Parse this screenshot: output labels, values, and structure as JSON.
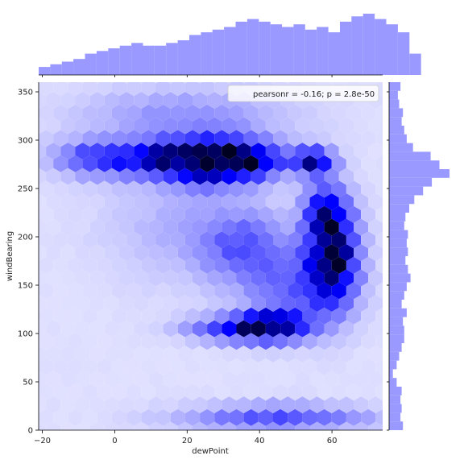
{
  "chart_data": {
    "type": "hexbin-joint",
    "xlabel": "dewPoint",
    "ylabel": "windBearing",
    "xlim": [
      -21,
      74
    ],
    "ylim": [
      0,
      360
    ],
    "xticks": [
      -20,
      0,
      20,
      40,
      60
    ],
    "yticks": [
      0,
      50,
      100,
      150,
      200,
      250,
      300,
      350
    ],
    "color": "#0000ff",
    "marginal_color": "#9999ff",
    "annotation": "pearsonr = -0.16; p = 2.8e-50",
    "legend_placement": "top-right",
    "grid": false,
    "hex_clusters": [
      {
        "x": 28,
        "y": 278,
        "sx": 9,
        "sy": 16,
        "w": 1.0
      },
      {
        "x": 18,
        "y": 282,
        "sx": 7,
        "sy": 10,
        "w": 0.55
      },
      {
        "x": 55,
        "y": 278,
        "sx": 4,
        "sy": 10,
        "w": 0.8
      },
      {
        "x": 8,
        "y": 280,
        "sx": 14,
        "sy": 14,
        "w": 0.45
      },
      {
        "x": -5,
        "y": 283,
        "sx": 8,
        "sy": 12,
        "w": 0.3
      },
      {
        "x": 40,
        "y": 280,
        "sx": 6,
        "sy": 12,
        "w": 0.45
      },
      {
        "x": 60,
        "y": 182,
        "sx": 5,
        "sy": 35,
        "w": 0.95
      },
      {
        "x": 58,
        "y": 230,
        "sx": 4,
        "sy": 18,
        "w": 0.55
      },
      {
        "x": 44,
        "y": 108,
        "sx": 6,
        "sy": 10,
        "w": 0.9
      },
      {
        "x": 33,
        "y": 105,
        "sx": 9,
        "sy": 9,
        "w": 0.55
      },
      {
        "x": 50,
        "y": 145,
        "sx": 10,
        "sy": 30,
        "w": 0.35
      },
      {
        "x": 35,
        "y": 190,
        "sx": 8,
        "sy": 25,
        "w": 0.35
      },
      {
        "x": 45,
        "y": 12,
        "sx": 18,
        "sy": 10,
        "w": 0.45
      },
      {
        "x": 20,
        "y": 325,
        "sx": 20,
        "sy": 20,
        "w": 0.25
      },
      {
        "x": 20,
        "y": 210,
        "sx": 15,
        "sy": 40,
        "w": 0.15
      }
    ],
    "x_marginal": {
      "bins_start": -21,
      "bin_width": 3.2,
      "counts": [
        3,
        4,
        5,
        6,
        8,
        9,
        10,
        11,
        12,
        11,
        11,
        12,
        13,
        15,
        16,
        17,
        18,
        20,
        21,
        20,
        19,
        18,
        19,
        17,
        18,
        16,
        20,
        22,
        23,
        21,
        19,
        16,
        8
      ]
    },
    "y_marginal": {
      "bins_start": 0,
      "bin_width": 9,
      "counts": [
        11,
        9,
        10,
        9,
        10,
        6,
        3,
        6,
        8,
        10,
        12,
        12,
        11,
        14,
        10,
        12,
        14,
        17,
        15,
        13,
        15,
        14,
        15,
        12,
        13,
        16,
        20,
        27,
        34,
        48,
        40,
        33,
        19,
        14,
        12,
        10,
        11,
        8,
        7,
        9
      ]
    }
  }
}
